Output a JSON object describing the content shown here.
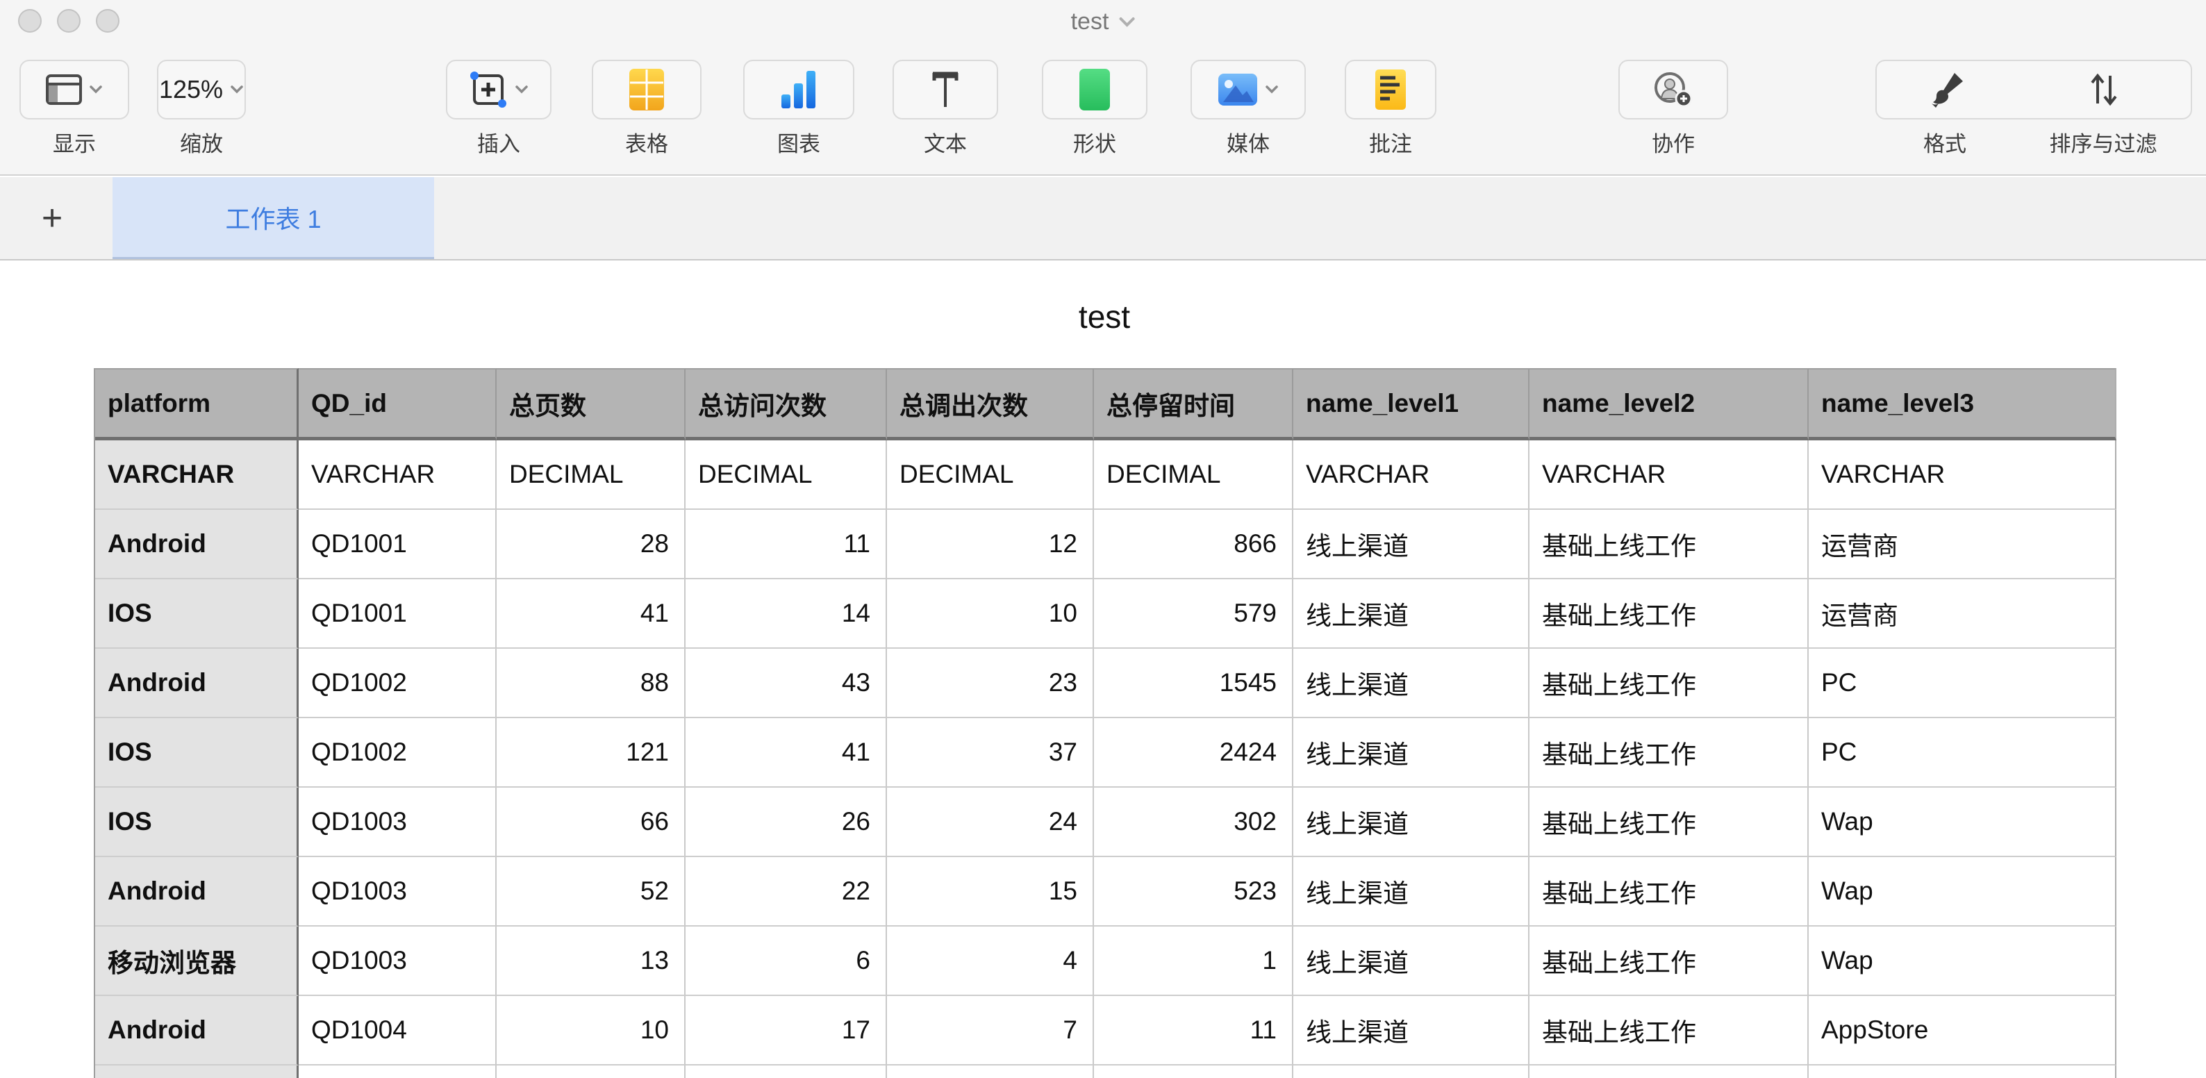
{
  "window": {
    "title": "test"
  },
  "toolbar": {
    "show": {
      "label": "显示"
    },
    "zoom": {
      "label": "缩放",
      "value": "125%"
    },
    "insert": {
      "label": "插入"
    },
    "table": {
      "label": "表格"
    },
    "chart": {
      "label": "图表"
    },
    "text": {
      "label": "文本"
    },
    "shape": {
      "label": "形状"
    },
    "media": {
      "label": "媒体"
    },
    "comment": {
      "label": "批注"
    },
    "collab": {
      "label": "协作"
    },
    "format": {
      "label": "格式"
    },
    "sort": {
      "label": "排序与过滤"
    }
  },
  "sheet_tabs": {
    "add_label": "+",
    "tabs": [
      {
        "label": "工作表 1",
        "active": true
      }
    ]
  },
  "sheet_table": {
    "title": "test",
    "columns": [
      "platform",
      "QD_id",
      "总页数",
      "总访问次数",
      "总调出次数",
      "总停留时间",
      "name_level1",
      "name_level2",
      "name_level3"
    ],
    "type_row": [
      "VARCHAR",
      "VARCHAR",
      "DECIMAL",
      "DECIMAL",
      "DECIMAL",
      "DECIMAL",
      "VARCHAR",
      "VARCHAR",
      "VARCHAR"
    ],
    "rows": [
      [
        "Android",
        "QD1001",
        "28",
        "11",
        "12",
        "866",
        "线上渠道",
        "基础上线工作",
        "运营商"
      ],
      [
        "IOS",
        "QD1001",
        "41",
        "14",
        "10",
        "579",
        "线上渠道",
        "基础上线工作",
        "运营商"
      ],
      [
        "Android",
        "QD1002",
        "88",
        "43",
        "23",
        "1545",
        "线上渠道",
        "基础上线工作",
        "PC"
      ],
      [
        "IOS",
        "QD1002",
        "121",
        "41",
        "37",
        "2424",
        "线上渠道",
        "基础上线工作",
        "PC"
      ],
      [
        "IOS",
        "QD1003",
        "66",
        "26",
        "24",
        "302",
        "线上渠道",
        "基础上线工作",
        "Wap"
      ],
      [
        "Android",
        "QD1003",
        "52",
        "22",
        "15",
        "523",
        "线上渠道",
        "基础上线工作",
        "Wap"
      ],
      [
        "移动浏览器",
        "QD1003",
        "13",
        "6",
        "4",
        "1",
        "线上渠道",
        "基础上线工作",
        "Wap"
      ],
      [
        "Android",
        "QD1004",
        "10",
        "17",
        "7",
        "11",
        "线上渠道",
        "基础上线工作",
        "AppStore"
      ]
    ]
  },
  "colors": {
    "accent_blue": "#3e7de0",
    "tab_background": "#d8e4f8",
    "header_gray": "#b4b4b4",
    "row_header_gray": "#e3e3e3",
    "toolbar_bg": "#f5f5f5",
    "table_icon_gold": "#f5a623",
    "chart_icon_blue": "#1f7df0",
    "shape_icon_green": "#35c968",
    "media_icon_blue": "#4a96f2",
    "comment_icon_yellow": "#ffd335"
  }
}
